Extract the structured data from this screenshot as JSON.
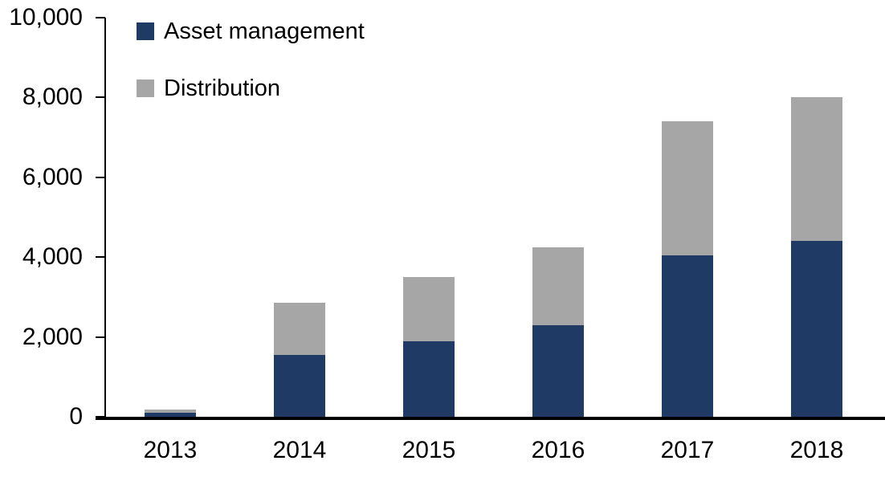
{
  "chart_data": {
    "type": "bar",
    "stacked": true,
    "title": "",
    "xlabel": "",
    "ylabel": "",
    "categories": [
      "2013",
      "2014",
      "2015",
      "2016",
      "2017",
      "2018"
    ],
    "series": [
      {
        "name": "Asset management",
        "color": "#203a66",
        "values": [
          100,
          1550,
          1900,
          2300,
          4050,
          4400
        ]
      },
      {
        "name": "Distribution",
        "color": "#a6a6a6",
        "values": [
          90,
          1300,
          1600,
          1950,
          3350,
          3600
        ]
      }
    ],
    "ylim": [
      0,
      10000
    ],
    "yticks": [
      0,
      2000,
      4000,
      6000,
      8000,
      10000
    ],
    "ytick_labels": [
      "0",
      "2,000",
      "4,000",
      "6,000",
      "8,000",
      "10,000"
    ],
    "legend_position": "top-left",
    "grid": false
  },
  "colors": {
    "axis": "#000000",
    "text": "#000000",
    "background": "#ffffff"
  }
}
